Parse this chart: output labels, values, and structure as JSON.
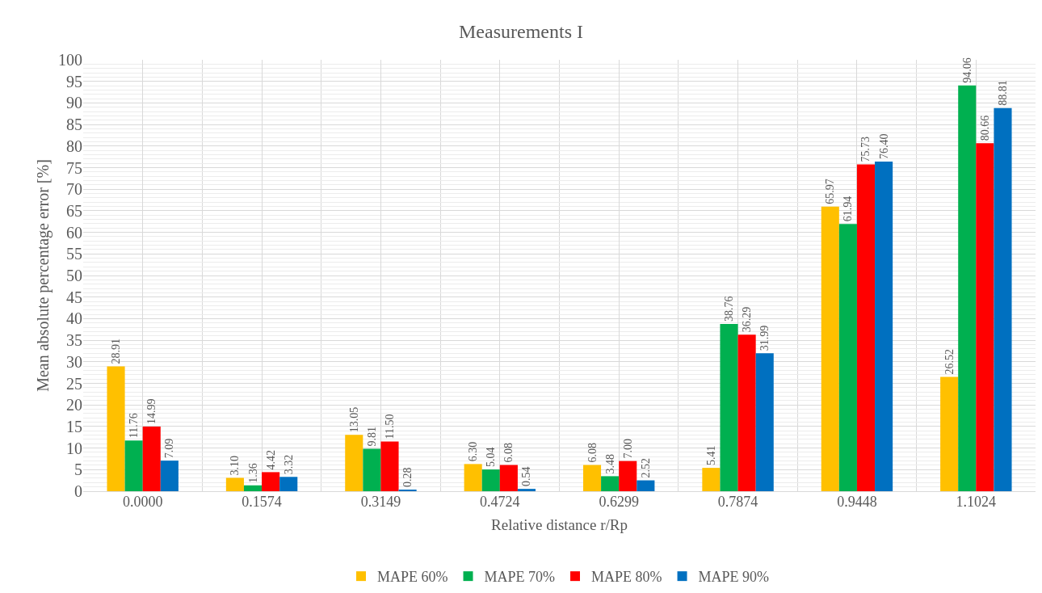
{
  "chart_data": {
    "type": "bar",
    "title": "Measurements I",
    "xlabel": "Relative distance r/Rp",
    "ylabel": "Mean absolute percentage error [%]",
    "categories": [
      "0.0000",
      "0.1574",
      "0.3149",
      "0.4724",
      "0.6299",
      "0.7874",
      "0.9448",
      "1.1024"
    ],
    "series": [
      {
        "name": "MAPE 60%",
        "color": "#ffc000",
        "values": [
          28.91,
          3.1,
          13.05,
          6.3,
          6.08,
          5.41,
          65.97,
          26.52
        ],
        "value_labels": [
          "28.91",
          "3.10",
          "13.05",
          "6.30",
          "6.08",
          "5.41",
          "65.97",
          "26.52"
        ]
      },
      {
        "name": "MAPE 70%",
        "color": "#00b050",
        "values": [
          11.76,
          1.36,
          9.81,
          5.04,
          3.48,
          38.76,
          61.94,
          94.06
        ],
        "value_labels": [
          "11.76",
          "1.36",
          "9.81",
          "5.04",
          "3.48",
          "38.76",
          "61.94",
          "94.06"
        ]
      },
      {
        "name": "MAPE 80%",
        "color": "#ff0000",
        "values": [
          14.99,
          4.42,
          11.5,
          6.08,
          7.0,
          36.29,
          75.73,
          80.66
        ],
        "value_labels": [
          "14.99",
          "4.42",
          "11.50",
          "6.08",
          "7.00",
          "36.29",
          "75.73",
          "80.66"
        ]
      },
      {
        "name": "MAPE 90%",
        "color": "#0070c0",
        "values": [
          7.09,
          3.32,
          0.28,
          0.54,
          2.52,
          31.99,
          76.4,
          88.81
        ],
        "value_labels": [
          "7.09",
          "3.32",
          "0.28",
          "0.54",
          "2.52",
          "31.99",
          "76.40",
          "88.81"
        ]
      }
    ],
    "ylim": [
      0,
      100
    ],
    "yticks": [
      0,
      5,
      10,
      15,
      20,
      25,
      30,
      35,
      40,
      45,
      50,
      55,
      60,
      65,
      70,
      75,
      80,
      85,
      90,
      95,
      100
    ],
    "grid": true,
    "legend": "bottom"
  }
}
